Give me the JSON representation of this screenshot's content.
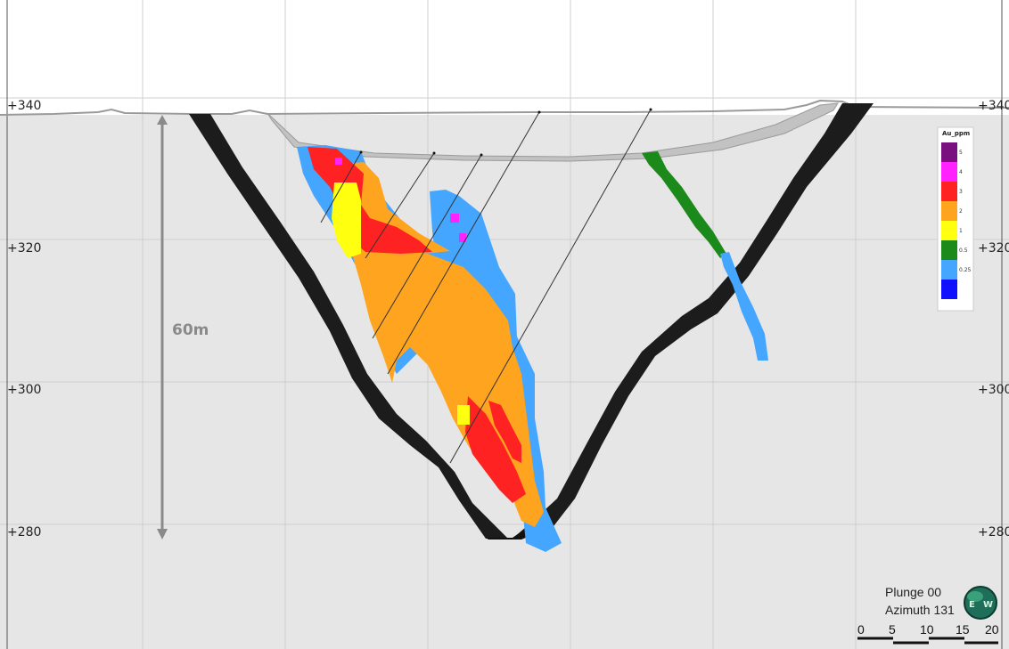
{
  "section": {
    "elevation_labels_left": [
      "+340",
      "+320",
      "+300",
      "+280"
    ],
    "elevation_labels_right": [
      "+340",
      "+320",
      "+300",
      "+280"
    ],
    "dimension_label": "60m"
  },
  "legend": {
    "title": "Au_ppm",
    "entries": [
      {
        "label": "5",
        "color": "#7a0f7f"
      },
      {
        "label": "4",
        "color": "#ff22ff"
      },
      {
        "label": "3",
        "color": "#ff2222"
      },
      {
        "label": "2",
        "color": "#ffa41f"
      },
      {
        "label": "1",
        "color": "#ffff10"
      },
      {
        "label": "0.5",
        "color": "#1b8a1b"
      },
      {
        "label": "0.25",
        "color": "#44a6ff"
      },
      {
        "label": "",
        "color": "#1010ff"
      }
    ]
  },
  "orientation": {
    "plunge": "Plunge 00",
    "azimuth": "Azimuth 131",
    "compass_letters": [
      "E",
      "W"
    ]
  },
  "scale_bar": {
    "ticks": [
      "0",
      "5",
      "10",
      "15",
      "20"
    ]
  },
  "colors": {
    "background": "#e6e6e6",
    "sky": "#ffffff",
    "pit_shell": "#1a1a1a",
    "drillhole": "#333333"
  }
}
